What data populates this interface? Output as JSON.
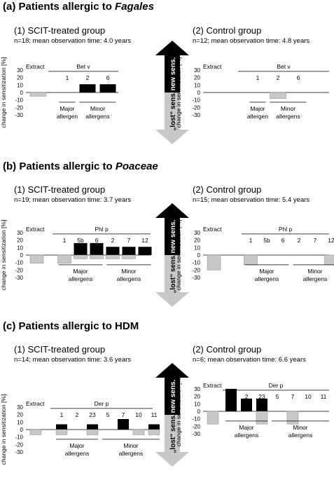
{
  "colors": {
    "gain": "#000000",
    "loss": "#c8c8c8",
    "axis": "#000000"
  },
  "figure": {
    "arrow_up_label": "new sens.",
    "arrow_down_label": "„lost“ sens.",
    "sections": [
      {
        "title_prefix": "(a) Patients allergic to ",
        "title_emph": "Fagales"
      },
      {
        "title_prefix": "(b) Patients allergic to ",
        "title_emph": "Poaceae"
      },
      {
        "title_prefix": "(c) Patients allergic to HDM",
        "title_emph": ""
      }
    ]
  },
  "chart_data": [
    {
      "type": "bar",
      "section": "a",
      "title": "(1) SCIT-treated group",
      "subtitle": "n=18; mean observation time: 4.0 years",
      "ylabel": "change in sensitization [%]",
      "ylim": [
        -30,
        30
      ],
      "yticks": [
        30,
        20,
        10,
        0,
        -10,
        -20,
        -30
      ],
      "extract_label": "Extract",
      "extract_value": -5,
      "component_group": "Bet v",
      "components": [
        "1",
        "2",
        "6"
      ],
      "gain": [
        null,
        11,
        11
      ],
      "loss": [
        null,
        null,
        null
      ],
      "allergen_groups": [
        {
          "lines": [
            "Major",
            "allergen"
          ],
          "members": [
            0
          ]
        },
        {
          "lines": [
            "Minor",
            "allergens"
          ],
          "members": [
            1,
            2
          ]
        }
      ]
    },
    {
      "type": "bar",
      "section": "a",
      "title": "(2) Control group",
      "subtitle": "n=12; mean observation time: 4.8 years",
      "ylabel": "change in sensitization [%]",
      "ylim": [
        -30,
        30
      ],
      "yticks": [
        30,
        20,
        10,
        0,
        -10,
        -20,
        -30
      ],
      "extract_label": "Extract",
      "extract_value": null,
      "component_group": "Bet v",
      "components": [
        "1",
        "2",
        "6"
      ],
      "gain": [
        null,
        null,
        null
      ],
      "loss": [
        null,
        -8,
        null
      ],
      "allergen_groups": [
        {
          "lines": [
            "Major",
            "allergen"
          ],
          "members": [
            0
          ]
        },
        {
          "lines": [
            "Minor",
            "allergens"
          ],
          "members": [
            1,
            2
          ]
        }
      ]
    },
    {
      "type": "bar",
      "section": "b",
      "title": "(1) SCIT-treated group",
      "subtitle": "n=19; mean observation time: 3.7 years",
      "ylabel": "change in sensitization [%]",
      "ylim": [
        -30,
        30
      ],
      "yticks": [
        30,
        20,
        10,
        0,
        -10,
        -20,
        -30
      ],
      "extract_label": "Extract",
      "extract_value": -11,
      "component_group": "Phl p",
      "components": [
        "1",
        "5b",
        "6",
        "2",
        "7",
        "12"
      ],
      "gain": [
        null,
        16,
        16,
        11,
        11,
        11
      ],
      "loss": [
        -11,
        -5,
        -5,
        -5,
        -5,
        null
      ],
      "allergen_groups": [
        {
          "lines": [
            "Major",
            "allergens"
          ],
          "members": [
            0,
            1,
            2
          ]
        },
        {
          "lines": [
            "Minor",
            "allergens"
          ],
          "members": [
            3,
            4,
            5
          ]
        }
      ]
    },
    {
      "type": "bar",
      "section": "b",
      "title": "(2) Control group",
      "subtitle": "n=15; mean observation time: 5.4 years",
      "ylabel": "change in sensitization [%]",
      "ylim": [
        -30,
        30
      ],
      "yticks": [
        30,
        20,
        10,
        0,
        -10,
        -20,
        -30
      ],
      "extract_label": "Extract",
      "extract_value": -20,
      "component_group": "Phl p",
      "components": [
        "1",
        "5b",
        "6",
        "2",
        "7",
        "12"
      ],
      "gain": [
        null,
        null,
        null,
        null,
        null,
        null
      ],
      "loss": [
        -13,
        null,
        null,
        null,
        null,
        -13
      ],
      "allergen_groups": [
        {
          "lines": [
            "Major",
            "allergens"
          ],
          "members": [
            0,
            1,
            2
          ]
        },
        {
          "lines": [
            "Minor",
            "allergens"
          ],
          "members": [
            3,
            4,
            5
          ]
        }
      ]
    },
    {
      "type": "bar",
      "section": "c",
      "title": "(1) SCIT-treated group",
      "subtitle": "n=14; mean observation time: 3.6 years",
      "ylabel": "change in sensitization [%]",
      "ylim": [
        -30,
        30
      ],
      "yticks": [
        30,
        20,
        10,
        0,
        -10,
        -20,
        -30
      ],
      "extract_label": "Extract",
      "extract_value": -7,
      "component_group": "Der p",
      "components": [
        "1",
        "2",
        "23",
        "5",
        "7",
        "10",
        "11"
      ],
      "gain": [
        7,
        null,
        7,
        null,
        14,
        null,
        7
      ],
      "loss": [
        -7,
        null,
        -7,
        null,
        null,
        -7,
        -7
      ],
      "allergen_groups": [
        {
          "lines": [
            "Major",
            "allergens"
          ],
          "members": [
            0,
            1,
            2
          ]
        },
        {
          "lines": [
            "Minor",
            "allergens"
          ],
          "members": [
            3,
            4,
            5,
            6
          ]
        }
      ]
    },
    {
      "type": "bar",
      "section": "c",
      "title": "(2) Control group",
      "subtitle": "n=6; mean observation time: 6.6 years",
      "ylabel": "change in sensitization [%]",
      "ylim": [
        -30,
        30
      ],
      "yticks": [
        30,
        20,
        10,
        0,
        -10,
        -20,
        -30
      ],
      "extract_label": "Extract",
      "extract_value": -17,
      "component_group": "Der p",
      "components": [
        "1",
        "2",
        "23",
        "5",
        "7",
        "10",
        "11"
      ],
      "gain": [
        30,
        17,
        17,
        null,
        null,
        null,
        null
      ],
      "loss": [
        null,
        null,
        -17,
        null,
        -17,
        null,
        null
      ],
      "allergen_groups": [
        {
          "lines": [
            "Major",
            "allergens"
          ],
          "members": [
            0,
            1,
            2
          ]
        },
        {
          "lines": [
            "Minor",
            "allergens"
          ],
          "members": [
            3,
            4,
            5,
            6
          ]
        }
      ]
    }
  ]
}
